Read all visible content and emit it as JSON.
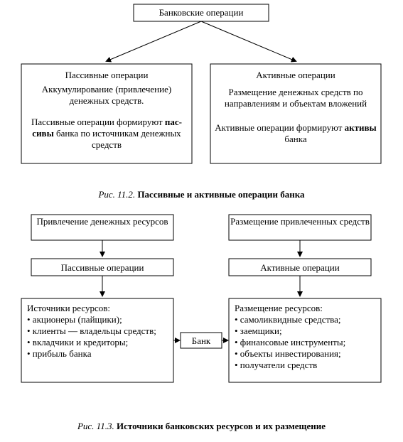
{
  "fig1": {
    "root": "Банковские операции",
    "left": {
      "title": "Пассивные операции",
      "p1": "Аккумулирование (привлечение) денежных средств.",
      "p2a": "Пассивные операции формируют ",
      "p2b": "пас­сивы",
      "p2c": " банка по источникам денежных средств"
    },
    "right": {
      "title": "Активные операции",
      "p1": "Размещение денежных средств по направлениям и объектам вложений",
      "p2a": "Активные операции формируют ",
      "p2b": "активы",
      "p2c": " банка"
    },
    "caption_fig": "Рис. 11.2.",
    "caption_title": "Пассивные и активные операции банка"
  },
  "fig2": {
    "topL": "Привлечение денежных ресурсов",
    "topR": "Размещение привлеченных средств",
    "midL": "Пассивные операции",
    "midR": "Активные операции",
    "bank": "Банк",
    "srcTitle": "Источники ресурсов:",
    "src": [
      "акционеры (пайщики);",
      "клиенты — владельцы средств;",
      "вкладчики и кредиторы;",
      "прибыль банка"
    ],
    "dstTitle": "Размещение ресурсов:",
    "dst": [
      "самоликвидные средства;",
      "заемщики;",
      "финансовые инструменты;",
      "объекты инвестирования;",
      "получатели средств"
    ],
    "caption_fig": "Рис. 11.3.",
    "caption_title": "Источники банковских ресурсов и их размещение"
  },
  "style": {
    "stroke": "#000000",
    "bg": "#ffffff",
    "font": "Times New Roman",
    "font_size_box": 13,
    "font_size_title": 13
  }
}
